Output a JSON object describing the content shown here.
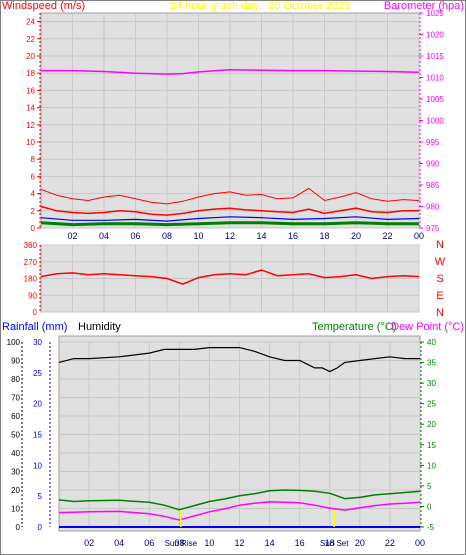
{
  "header": {
    "windspeed_label": "Windspeed (m/s)",
    "title": "24 hour graph day : 20 October 2025",
    "barometer_label": "Barometer (hpa)"
  },
  "compass": [
    "N",
    "W",
    "S",
    "E",
    "N"
  ],
  "footer_header": {
    "rainfall_label": "Rainfall (mm)",
    "humidity_label": "Humidity",
    "temperature_label": "Temperature (°C)",
    "dewpoint_label": "Dew Point (°C)"
  },
  "sun_labels": {
    "sunrise": "Sun Rise",
    "sunset": "Sun Set"
  },
  "colors": {
    "wind": "#ff0000",
    "barometer": "#ff00ff",
    "gust_blue": "#0000ff",
    "gust_green": "#008000",
    "humidity": "#000000",
    "temperature": "#008000",
    "dewpoint": "#ff00ff",
    "rain": "#0000ff",
    "sun": "#ffff00",
    "title": "#ffff00",
    "plot_bg": "#e0e0e0"
  },
  "chart_data": [
    {
      "type": "line",
      "name": "wind-and-barometer",
      "x_ticks": [
        "02",
        "04",
        "06",
        "08",
        "10",
        "12",
        "14",
        "16",
        "18",
        "20",
        "22",
        "00"
      ],
      "x_hours": [
        2,
        4,
        6,
        8,
        10,
        12,
        14,
        16,
        18,
        20,
        22,
        24
      ],
      "x_range": [
        0,
        24
      ],
      "y_left_ticks": [
        "0",
        "2",
        "4",
        "6",
        "8",
        "10",
        "12",
        "14",
        "16",
        "18",
        "20",
        "22",
        "24"
      ],
      "y_left_range": [
        0,
        25
      ],
      "y_right_ticks": [
        "975",
        "980",
        "985",
        "990",
        "995",
        "1000",
        "1005",
        "1010",
        "1015",
        "1020",
        "1025"
      ],
      "y_right_range": [
        975,
        1025
      ],
      "barometer": {
        "x": [
          0,
          2,
          4,
          6,
          8,
          9,
          10,
          12,
          14,
          16,
          18,
          20,
          22,
          24
        ],
        "y": [
          1011.6,
          1011.6,
          1011.4,
          1011.0,
          1010.8,
          1010.9,
          1011.3,
          1011.8,
          1011.7,
          1011.6,
          1011.6,
          1011.5,
          1011.4,
          1011.2
        ]
      },
      "wind_speed": {
        "x": [
          0,
          1,
          2,
          3,
          4,
          5,
          6,
          7,
          8,
          9,
          10,
          11,
          12,
          13,
          14,
          15,
          16,
          17,
          18,
          19,
          20,
          21,
          22,
          23,
          24
        ],
        "y": [
          2.5,
          2.0,
          1.8,
          1.7,
          1.8,
          2.0,
          1.9,
          1.6,
          1.5,
          1.7,
          2.0,
          2.2,
          2.3,
          2.1,
          2.0,
          1.9,
          1.8,
          2.2,
          1.7,
          2.0,
          2.3,
          1.9,
          1.8,
          2.0,
          2.0
        ]
      },
      "wind_gust": {
        "x": [
          0,
          1,
          2,
          3,
          4,
          5,
          6,
          7,
          8,
          9,
          10,
          11,
          12,
          13,
          14,
          15,
          16,
          17,
          18,
          19,
          20,
          21,
          22,
          23,
          24
        ],
        "y": [
          4.5,
          3.8,
          3.4,
          3.2,
          3.6,
          3.8,
          3.4,
          3.0,
          2.8,
          3.1,
          3.6,
          4.0,
          4.2,
          3.8,
          3.9,
          3.4,
          3.5,
          4.6,
          3.2,
          3.6,
          4.1,
          3.4,
          3.1,
          3.3,
          3.2
        ]
      },
      "wind_avg_blue": {
        "x": [
          0,
          2,
          4,
          6,
          8,
          10,
          12,
          14,
          16,
          18,
          20,
          22,
          24
        ],
        "y": [
          1.2,
          0.9,
          0.9,
          1.0,
          0.8,
          1.1,
          1.3,
          1.2,
          1.0,
          1.1,
          1.3,
          1.0,
          1.1
        ]
      },
      "wind_min_green": {
        "x": [
          0,
          2,
          4,
          6,
          8,
          10,
          12,
          14,
          16,
          18,
          20,
          22,
          24
        ],
        "y": [
          0.6,
          0.4,
          0.5,
          0.5,
          0.4,
          0.5,
          0.6,
          0.6,
          0.5,
          0.5,
          0.6,
          0.5,
          0.5
        ]
      }
    },
    {
      "type": "line",
      "name": "wind-direction",
      "x_range": [
        0,
        24
      ],
      "y_ticks": [
        "0",
        "90",
        "180",
        "270",
        "360"
      ],
      "y_range": [
        0,
        360
      ],
      "direction": {
        "x": [
          0,
          1,
          2,
          3,
          4,
          5,
          6,
          7,
          8,
          9,
          10,
          11,
          12,
          13,
          14,
          15,
          16,
          17,
          18,
          19,
          20,
          21,
          22,
          23,
          24
        ],
        "y": [
          190,
          205,
          210,
          200,
          205,
          200,
          195,
          190,
          180,
          150,
          185,
          200,
          205,
          200,
          225,
          195,
          200,
          205,
          185,
          190,
          200,
          180,
          190,
          195,
          190
        ]
      }
    },
    {
      "type": "line",
      "name": "temperature-humidity-rain",
      "x_ticks": [
        "02",
        "04",
        "06",
        "08",
        "10",
        "12",
        "14",
        "16",
        "18",
        "20",
        "22",
        "00"
      ],
      "x_hours": [
        2,
        4,
        6,
        8,
        10,
        12,
        14,
        16,
        18,
        20,
        22,
        24
      ],
      "x_range": [
        0,
        24
      ],
      "y_humidity_ticks": [
        "0",
        "10",
        "20",
        "30",
        "40",
        "50",
        "60",
        "70",
        "80",
        "90",
        "100"
      ],
      "y_humidity_range": [
        0,
        100
      ],
      "y_rain_ticks": [
        "0",
        "5",
        "10",
        "15",
        "20",
        "25",
        "30"
      ],
      "y_rain_range": [
        0,
        30
      ],
      "y_temp_ticks": [
        "-5",
        "0",
        "5",
        "10",
        "15",
        "20",
        "25",
        "30",
        "35",
        "40"
      ],
      "y_temp_range": [
        -5,
        40
      ],
      "humidity": {
        "x": [
          0,
          1,
          2,
          4,
          6,
          7,
          8,
          9,
          10,
          11,
          12,
          13,
          14,
          15,
          16,
          16.5,
          17,
          17.5,
          18,
          18.5,
          19,
          20,
          22,
          23,
          24
        ],
        "y": [
          89,
          91,
          91,
          92,
          94,
          96,
          96,
          96,
          97,
          97,
          97,
          95,
          92,
          90,
          90,
          88,
          86,
          86,
          84,
          86,
          89,
          90,
          92,
          91,
          91
        ]
      },
      "temperature": {
        "x": [
          0,
          1,
          2,
          4,
          6,
          7,
          8,
          9,
          10,
          11,
          12,
          13,
          14,
          15,
          16,
          17,
          18,
          19,
          20,
          21,
          22,
          23,
          24
        ],
        "y": [
          1.6,
          1.2,
          1.4,
          1.5,
          1.0,
          0.3,
          -0.8,
          0.2,
          1.2,
          1.8,
          2.6,
          3.1,
          3.8,
          4.0,
          3.9,
          3.7,
          3.2,
          1.9,
          2.2,
          2.8,
          3.1,
          3.4,
          3.7
        ]
      },
      "dew_point": {
        "x": [
          0,
          1,
          2,
          4,
          6,
          7,
          8,
          9,
          10,
          11,
          12,
          13,
          14,
          15,
          16,
          17,
          18,
          19,
          20,
          21,
          22,
          23,
          24
        ],
        "y": [
          -1.5,
          -1.4,
          -1.3,
          -1.2,
          -1.8,
          -2.4,
          -3.3,
          -2.3,
          -1.3,
          -0.6,
          0.3,
          0.8,
          1.1,
          1.0,
          0.9,
          0.3,
          -0.4,
          -0.9,
          -0.3,
          0.2,
          0.6,
          0.8,
          1.0
        ]
      },
      "rainfall": {
        "x": [
          0,
          24
        ],
        "y": [
          0,
          0
        ]
      },
      "sunrise_hour": 8.1,
      "sunset_hour": 18.3
    }
  ]
}
